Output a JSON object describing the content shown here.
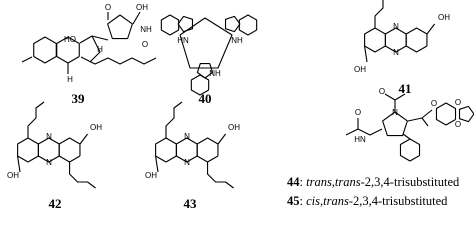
{
  "compounds": [
    {
      "id": "39",
      "atom_labels": [
        "O",
        "OH",
        "NH",
        "O",
        "HO",
        "H",
        "H"
      ]
    },
    {
      "id": "40",
      "atom_labels": [
        "HN",
        "NH",
        "NH"
      ]
    },
    {
      "id": "41",
      "atom_labels": [
        "OH",
        "N",
        "N",
        "OH"
      ]
    },
    {
      "id": "42",
      "atom_labels": [
        "OH",
        "N",
        "N",
        "OH"
      ]
    },
    {
      "id": "43",
      "atom_labels": [
        "OH",
        "N",
        "N",
        "OH"
      ]
    },
    {
      "id": "44",
      "atom_labels": [
        "O",
        "N",
        "O",
        "HN",
        "O",
        "O",
        "O"
      ]
    }
  ],
  "legend": [
    {
      "number": "44",
      "separator": ": ",
      "stereo": "trans,trans",
      "rest": "-2,3,4-trisubstituted"
    },
    {
      "number": "45",
      "separator": ": ",
      "stereo": "cis,trans",
      "rest": "-2,3,4-trisubstituted"
    }
  ]
}
